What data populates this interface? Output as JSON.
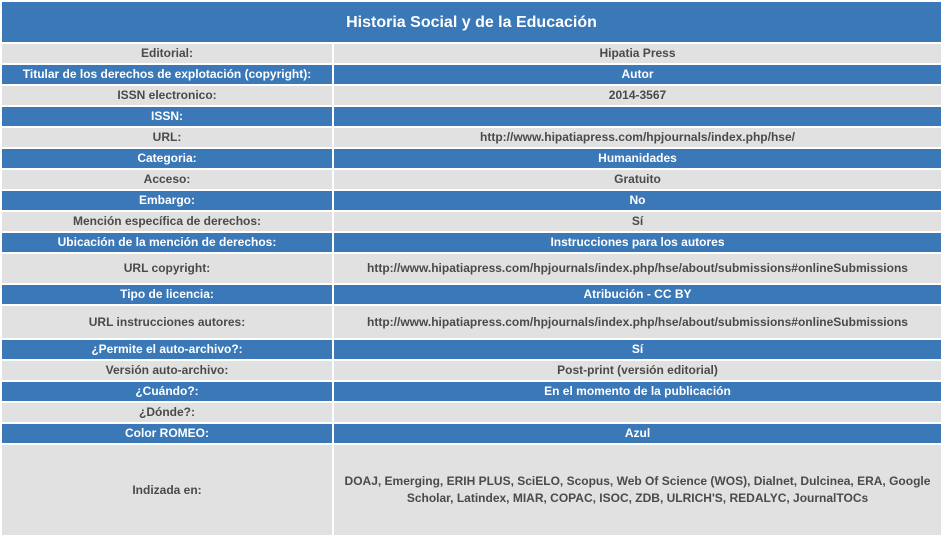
{
  "header": {
    "title": "Historia Social y de la Educación"
  },
  "table": {
    "rows": [
      {
        "label": "Editorial:",
        "value": "Hipatia Press"
      },
      {
        "label": "Titular de los derechos de explotación (copyright):",
        "value": "Autor"
      },
      {
        "label": "ISSN electronico:",
        "value": "2014-3567"
      },
      {
        "label": "ISSN:"
      },
      {
        "label": "URL:",
        "value": "http://www.hipatiapress.com/hpjournals/index.php/hse/"
      },
      {
        "label": "Categoria:",
        "value": "Humanidades"
      },
      {
        "label": "Acceso:",
        "value": "Gratuito"
      },
      {
        "label": "Embargo:",
        "value": "No"
      },
      {
        "label": "Mención específica de derechos:",
        "value": "Sí"
      },
      {
        "label": "Ubicación de la mención de derechos:",
        "value": "Instrucciones para los autores"
      },
      {
        "label": "URL copyright:",
        "value": "http://www.hipatiapress.com/hpjournals/index.php/hse/about/submissions#onlineSubmissions"
      },
      {
        "label": "Tipo de licencia:",
        "value": "Atribución - CC BY"
      },
      {
        "label": "URL instrucciones autores:",
        "value": "http://www.hipatiapress.com/hpjournals/index.php/hse/about/submissions#onlineSubmissions"
      },
      {
        "label": "¿Permite el auto-archivo?:",
        "value": "Sí"
      },
      {
        "label": "Versión auto-archivo:",
        "value": "Post-print (versión editorial)"
      },
      {
        "label": "¿Cuándo?:",
        "value": "En el momento de la publicación"
      },
      {
        "label": "¿Dónde?:"
      },
      {
        "label": "Color ROMEO:",
        "value": "Azul"
      },
      {
        "label": "Indizada en:",
        "value": "DOAJ, Emerging, ERIH PLUS, SciELO, Scopus, Web Of Science (WOS), Dialnet, Dulcinea, ERA, Google Scholar, Latindex, MIAR, COPAC, ISOC, ZDB, ULRICH'S, REDALYC, JournalTOCs"
      }
    ]
  }
}
